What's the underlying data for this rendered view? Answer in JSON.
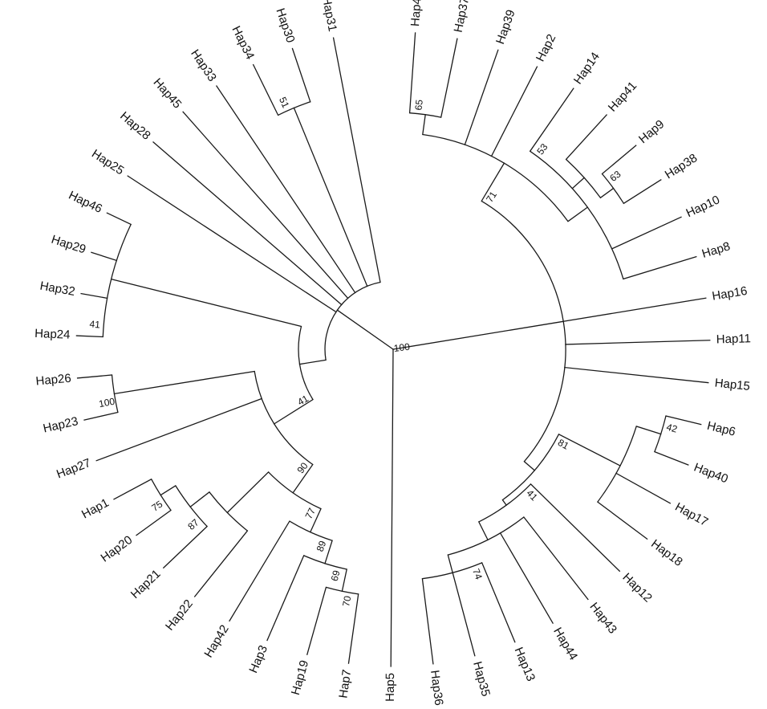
{
  "tree": {
    "line_color": "#1a1a1a",
    "text_color": "#111111",
    "leaves": [
      "Hap4",
      "Hap37",
      "Hap39",
      "Hap2",
      "Hap14",
      "Hap41",
      "Hap9",
      "Hap38",
      "Hap10",
      "Hap8",
      "Hap16",
      "Hap11",
      "Hap15",
      "Hap6",
      "Hap40",
      "Hap17",
      "Hap18",
      "Hap12",
      "Hap43",
      "Hap44",
      "Hap13",
      "Hap35",
      "Hap36",
      "Hap5",
      "Hap7",
      "Hap19",
      "Hap3",
      "Hap42",
      "Hap22",
      "Hap21",
      "Hap20",
      "Hap1",
      "Hap27",
      "Hap23",
      "Hap26",
      "Hap24",
      "Hap32",
      "Hap29",
      "Hap46",
      "Hap25",
      "Hap28",
      "Hap45",
      "Hap33",
      "Hap34",
      "Hap30",
      "Hap31"
    ],
    "support_values": [
      "65",
      "53",
      "63",
      "71",
      "42",
      "41",
      "74",
      "81",
      "100",
      "70",
      "69",
      "89",
      "75",
      "87",
      "77",
      "90",
      "100",
      "41",
      "41",
      "51"
    ]
  }
}
